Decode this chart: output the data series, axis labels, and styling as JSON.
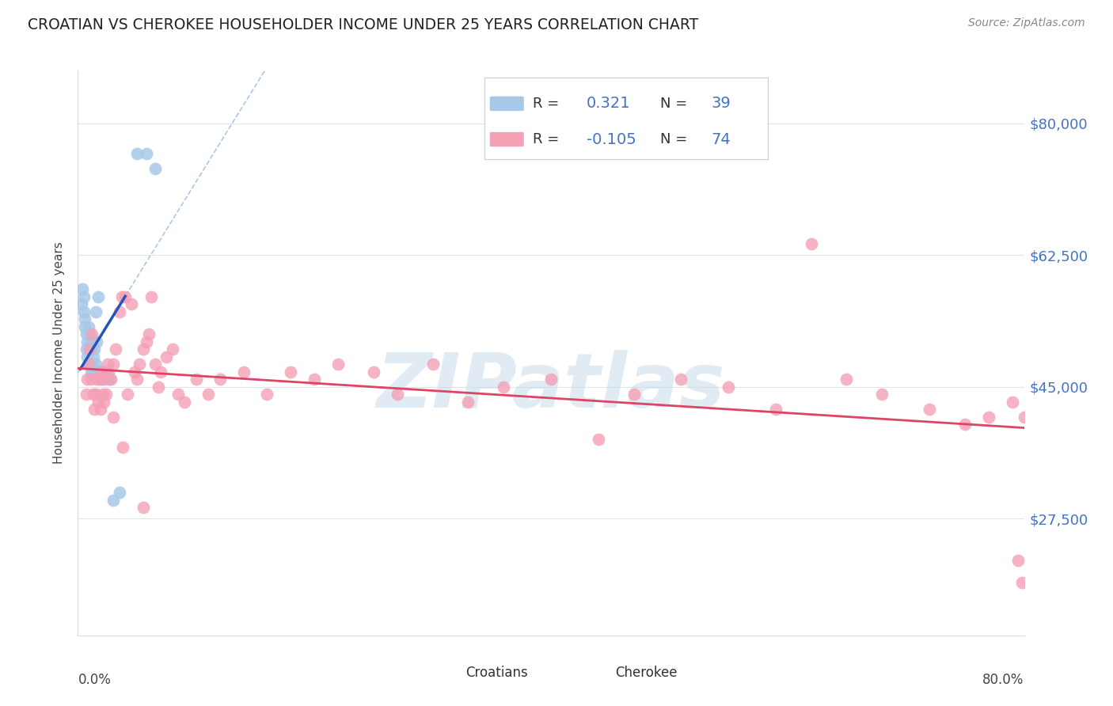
{
  "title": "CROATIAN VS CHEROKEE HOUSEHOLDER INCOME UNDER 25 YEARS CORRELATION CHART",
  "source": "Source: ZipAtlas.com",
  "ylabel": "Householder Income Under 25 years",
  "ytick_labels": [
    "$27,500",
    "$45,000",
    "$62,500",
    "$80,000"
  ],
  "ytick_values": [
    27500,
    45000,
    62500,
    80000
  ],
  "watermark": "ZIPatlas",
  "legend_r1": "R =",
  "legend_v1": "0.321",
  "legend_n1_label": "N =",
  "legend_n1_val": "39",
  "legend_r2": "R =",
  "legend_v2": "-0.105",
  "legend_n2_label": "N =",
  "legend_n2_val": "74",
  "croatian_color": "#a8c8e8",
  "cherokee_color": "#f4a0b5",
  "croatian_line_color": "#2255bb",
  "cherokee_line_color": "#dd4466",
  "dashed_line_color": "#aac8e8",
  "xlim": [
    0.0,
    0.8
  ],
  "ylim": [
    12000,
    87000
  ],
  "grid_color": "#e0e4ec",
  "croatian_scatter_x": [
    0.003,
    0.004,
    0.005,
    0.005,
    0.006,
    0.006,
    0.007,
    0.007,
    0.008,
    0.008,
    0.009,
    0.009,
    0.01,
    0.01,
    0.01,
    0.011,
    0.011,
    0.012,
    0.012,
    0.013,
    0.013,
    0.014,
    0.015,
    0.015,
    0.016,
    0.017,
    0.018,
    0.019,
    0.02,
    0.021,
    0.022,
    0.024,
    0.025,
    0.027,
    0.03,
    0.035,
    0.05,
    0.058,
    0.065
  ],
  "croatian_scatter_y": [
    56000,
    58000,
    57000,
    55000,
    54000,
    53000,
    52000,
    50000,
    51000,
    49000,
    53000,
    48000,
    52000,
    50000,
    48000,
    51000,
    47000,
    50000,
    48000,
    49000,
    47000,
    50000,
    55000,
    48000,
    51000,
    57000,
    47000,
    47000,
    46000,
    46000,
    47000,
    47000,
    46000,
    46000,
    30000,
    31000,
    76000,
    76000,
    74000
  ],
  "cherokee_scatter_x": [
    0.007,
    0.008,
    0.009,
    0.01,
    0.011,
    0.012,
    0.013,
    0.014,
    0.015,
    0.016,
    0.017,
    0.018,
    0.019,
    0.02,
    0.021,
    0.022,
    0.024,
    0.026,
    0.028,
    0.03,
    0.032,
    0.035,
    0.037,
    0.04,
    0.042,
    0.045,
    0.048,
    0.05,
    0.052,
    0.055,
    0.058,
    0.06,
    0.062,
    0.065,
    0.068,
    0.07,
    0.075,
    0.08,
    0.085,
    0.09,
    0.1,
    0.11,
    0.12,
    0.14,
    0.16,
    0.18,
    0.2,
    0.22,
    0.25,
    0.27,
    0.3,
    0.33,
    0.36,
    0.4,
    0.44,
    0.47,
    0.51,
    0.55,
    0.59,
    0.62,
    0.65,
    0.68,
    0.72,
    0.75,
    0.77,
    0.79,
    0.795,
    0.798,
    0.8,
    0.022,
    0.025,
    0.03,
    0.038,
    0.055
  ],
  "cherokee_scatter_y": [
    44000,
    46000,
    48000,
    50000,
    46000,
    52000,
    44000,
    42000,
    44000,
    46000,
    43000,
    46000,
    42000,
    47000,
    44000,
    46000,
    44000,
    47000,
    46000,
    48000,
    50000,
    55000,
    57000,
    57000,
    44000,
    56000,
    47000,
    46000,
    48000,
    50000,
    51000,
    52000,
    57000,
    48000,
    45000,
    47000,
    49000,
    50000,
    44000,
    43000,
    46000,
    44000,
    46000,
    47000,
    44000,
    47000,
    46000,
    48000,
    47000,
    44000,
    48000,
    43000,
    45000,
    46000,
    38000,
    44000,
    46000,
    45000,
    42000,
    64000,
    46000,
    44000,
    42000,
    40000,
    41000,
    43000,
    22000,
    19000,
    41000,
    43000,
    48000,
    41000,
    37000,
    29000
  ]
}
